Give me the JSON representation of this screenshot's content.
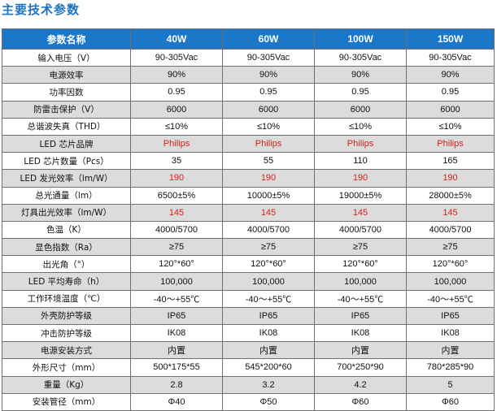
{
  "title": "主要技术参数",
  "colors": {
    "header_bg": "#1b78c8",
    "title": "#1e73c0",
    "shaded_row": "#dcdcdc",
    "highlight_text": "#d42020"
  },
  "table": {
    "headers": [
      "参数名称",
      "40W",
      "60W",
      "100W",
      "150W"
    ],
    "rows": [
      {
        "label": "输入电压（V）",
        "values": [
          "90-305Vac",
          "90-305Vac",
          "90-305Vac",
          "90-305Vac"
        ],
        "red": false
      },
      {
        "label": "电源效率",
        "values": [
          "90%",
          "90%",
          "90%",
          "90%"
        ],
        "red": false
      },
      {
        "label": "功率因数",
        "values": [
          "0.95",
          "0.95",
          "0.95",
          "0.95"
        ],
        "red": false
      },
      {
        "label": "防雷击保护（V）",
        "values": [
          "6000",
          "6000",
          "6000",
          "6000"
        ],
        "red": false
      },
      {
        "label": "总谐波失真（THD）",
        "values": [
          "≤10%",
          "≤10%",
          "≤10%",
          "≤10%"
        ],
        "red": false
      },
      {
        "label": "LED 芯片品牌",
        "values": [
          "Philips",
          "Philips",
          "Philips",
          "Philips"
        ],
        "red": true
      },
      {
        "label": "LED 芯片数量（Pcs）",
        "values": [
          "35",
          "55",
          "110",
          "165"
        ],
        "red": false
      },
      {
        "label": "LED 发光效率（lm/W）",
        "values": [
          "190",
          "190",
          "190",
          "190"
        ],
        "red": true
      },
      {
        "label": "总光通量（lm）",
        "values": [
          "6500±5%",
          "10000±5%",
          "19000±5%",
          "28000±5%"
        ],
        "red": false
      },
      {
        "label": "灯具出光效率（lm/W）",
        "values": [
          "145",
          "145",
          "145",
          "145"
        ],
        "red": true
      },
      {
        "label": "色温（K）",
        "values": [
          "4000/5700",
          "4000/5700",
          "4000/5700",
          "4000/5700"
        ],
        "red": false
      },
      {
        "label": "显色指数（Ra）",
        "values": [
          "≥75",
          "≥75",
          "≥75",
          "≥75"
        ],
        "red": false
      },
      {
        "label": "出光角（°）",
        "values": [
          "120°*60°",
          "120°*60°",
          "120°*60°",
          "120°*60°"
        ],
        "red": false
      },
      {
        "label": "LED 平均寿命（h）",
        "values": [
          "100,000",
          "100,000",
          "100,000",
          "100,000"
        ],
        "red": false
      },
      {
        "label": "工作环境温度（℃）",
        "values": [
          "-40～+55℃",
          "-40～+55℃",
          "-40～+55℃",
          "-40～+55℃"
        ],
        "red": false
      },
      {
        "label": "外壳防护等级",
        "values": [
          "IP65",
          "IP65",
          "IP65",
          "IP65"
        ],
        "red": false
      },
      {
        "label": "冲击防护等级",
        "values": [
          "IK08",
          "IK08",
          "IK08",
          "IK08"
        ],
        "red": false
      },
      {
        "label": "电源安装方式",
        "values": [
          "内置",
          "内置",
          "内置",
          "内置"
        ],
        "red": false
      },
      {
        "label": "外形尺寸（mm）",
        "values": [
          "500*175*55",
          "545*200*60",
          "700*250*90",
          "780*285*90"
        ],
        "red": false
      },
      {
        "label": "重量（Kg）",
        "values": [
          "2.8",
          "3.2",
          "4.2",
          "5"
        ],
        "red": false
      },
      {
        "label": "安装管径（mm）",
        "values": [
          "Φ40",
          "Φ50",
          "Φ60",
          "Φ60"
        ],
        "red": false
      }
    ]
  }
}
